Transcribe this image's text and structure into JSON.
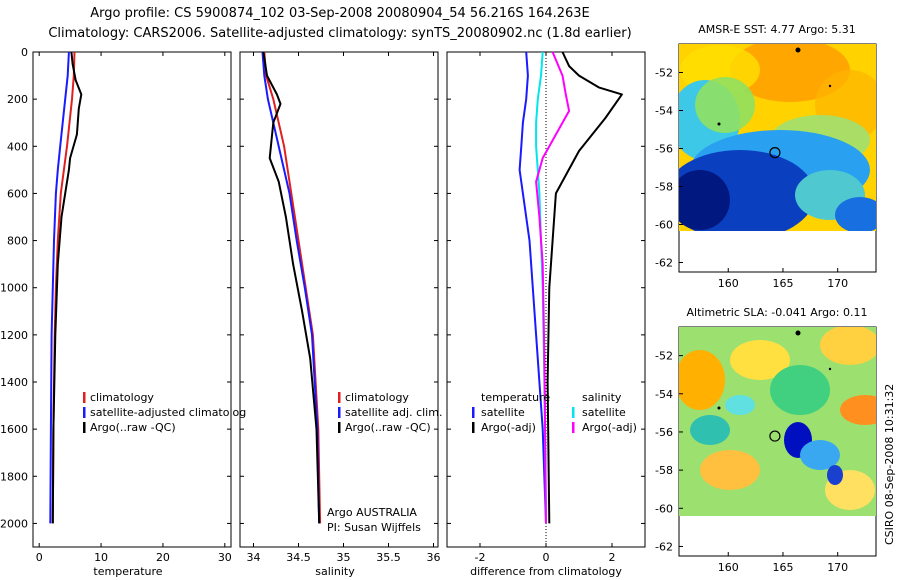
{
  "header": {
    "line1": "Argo profile: CS 5900874_102 03-Sep-2008 20080904_54 56.216S 164.263E",
    "line2": "Climatology: CARS2006. Satellite-adjusted climatology: synTS_20080902.nc (1.8d earlier)"
  },
  "chart_data": [
    {
      "type": "line",
      "xlabel": "temperature",
      "ylabel": "",
      "xlim": [
        -1,
        31
      ],
      "ylim": [
        2100,
        0
      ],
      "xticks": [
        0,
        10,
        20,
        30
      ],
      "yticks": [
        0,
        200,
        400,
        600,
        800,
        1000,
        1200,
        1400,
        1600,
        1800,
        2000
      ],
      "legend": [
        "climatology",
        "satellite-adjusted climatolog",
        "Argo(..raw -QC)"
      ],
      "legend_position": "lower-middle",
      "series": [
        {
          "name": "climatology",
          "color": "#e02020",
          "x": [
            5.7,
            5.6,
            5.3,
            4.9,
            4.5,
            4.0,
            3.5,
            3.0,
            2.7,
            2.5,
            2.3,
            2.2
          ],
          "y": [
            0,
            100,
            200,
            300,
            400,
            500,
            600,
            800,
            1000,
            1200,
            1600,
            2000
          ]
        },
        {
          "name": "satellite-adjusted climatolog",
          "color": "#1a1aff",
          "x": [
            4.8,
            4.6,
            4.2,
            3.8,
            3.4,
            3.0,
            2.7,
            2.4,
            2.2,
            2.0,
            1.9,
            1.8
          ],
          "y": [
            0,
            100,
            200,
            300,
            400,
            500,
            600,
            800,
            1000,
            1200,
            1600,
            2000
          ]
        },
        {
          "name": "Argo(..raw -QC)",
          "color": "#000000",
          "x": [
            5.2,
            5.4,
            5.9,
            6.8,
            6.4,
            6.1,
            5.0,
            4.8,
            4.2,
            3.6,
            3.0,
            2.6,
            2.3,
            2.2
          ],
          "y": [
            0,
            50,
            120,
            180,
            240,
            350,
            450,
            500,
            600,
            700,
            900,
            1200,
            1600,
            2000
          ]
        }
      ]
    },
    {
      "type": "line",
      "xlabel": "salinity",
      "xlim": [
        33.85,
        36.05
      ],
      "ylim": [
        2100,
        0
      ],
      "xticks": [
        34,
        34.5,
        35,
        35.5,
        36
      ],
      "xticklabels": [
        "34",
        "34.5",
        "35",
        "35.5",
        "36"
      ],
      "legend": [
        "climatology",
        "satellite adj. clim.",
        "Argo(..raw -QC)"
      ],
      "legend_position": "lower-middle",
      "annotations": [
        "Argo AUSTRALIA",
        "PI: Susan Wijffels"
      ],
      "series": [
        {
          "name": "climatology",
          "color": "#e02020",
          "x": [
            34.12,
            34.14,
            34.22,
            34.28,
            34.34,
            34.38,
            34.42,
            34.5,
            34.58,
            34.66,
            34.72,
            34.74
          ],
          "y": [
            0,
            100,
            200,
            300,
            400,
            500,
            600,
            800,
            1000,
            1200,
            1600,
            2000
          ]
        },
        {
          "name": "satellite adj. clim.",
          "color": "#1a1aff",
          "x": [
            34.1,
            34.12,
            34.16,
            34.22,
            34.28,
            34.34,
            34.4,
            34.48,
            34.57,
            34.65,
            34.71,
            34.73
          ],
          "y": [
            0,
            100,
            200,
            300,
            400,
            500,
            600,
            800,
            1000,
            1200,
            1600,
            2000
          ]
        },
        {
          "name": "Argo(..raw -QC)",
          "color": "#000000",
          "x": [
            34.11,
            34.15,
            34.26,
            34.3,
            34.22,
            34.18,
            34.28,
            34.36,
            34.44,
            34.54,
            34.63,
            34.7,
            34.73
          ],
          "y": [
            0,
            100,
            180,
            220,
            300,
            450,
            550,
            700,
            900,
            1100,
            1300,
            1600,
            2000
          ]
        }
      ]
    },
    {
      "type": "line",
      "xlabel": "difference from climatology",
      "xlim": [
        -3,
        3
      ],
      "ylim": [
        2100,
        0
      ],
      "xticks": [
        -2,
        0,
        2
      ],
      "legend": [
        "temperature",
        "satellite",
        "Argo(-adj)",
        "salinity",
        "satellite",
        "Argo(-adj)"
      ],
      "legend_position": "lower-middle",
      "series": [
        {
          "name": "temperature satellite",
          "color": "#1a1aff",
          "x": [
            -0.6,
            -0.55,
            -0.6,
            -0.7,
            -0.75,
            -0.8,
            -0.7,
            -0.5,
            -0.4,
            -0.3,
            -0.1,
            0.0
          ],
          "y": [
            0,
            100,
            200,
            300,
            400,
            500,
            600,
            800,
            1000,
            1200,
            1600,
            2000
          ]
        },
        {
          "name": "temperature Argo(-adj)",
          "color": "#000000",
          "x": [
            0.5,
            0.7,
            1.0,
            1.6,
            2.3,
            1.8,
            1.0,
            0.3,
            0.2,
            0.1,
            0.05,
            0.1
          ],
          "y": [
            0,
            60,
            100,
            150,
            180,
            280,
            420,
            600,
            800,
            1000,
            1400,
            2000
          ]
        },
        {
          "name": "salinity satellite",
          "color": "#00e5ee",
          "x": [
            -0.1,
            -0.15,
            -0.25,
            -0.3,
            -0.3,
            -0.25,
            -0.2,
            -0.15,
            -0.1,
            -0.05,
            0.0
          ],
          "y": [
            0,
            100,
            200,
            300,
            400,
            500,
            600,
            800,
            1000,
            1400,
            2000
          ]
        },
        {
          "name": "salinity Argo(-adj)",
          "color": "#ff00ff",
          "x": [
            0.2,
            0.5,
            0.6,
            0.7,
            0.3,
            -0.1,
            -0.3,
            -0.2,
            -0.1,
            -0.05,
            0.0
          ],
          "y": [
            0,
            100,
            180,
            250,
            350,
            450,
            550,
            700,
            900,
            1300,
            2000
          ]
        }
      ]
    },
    {
      "type": "heatmap",
      "title": "AMSR-E SST: 4.77  Argo: 5.31",
      "xlim": [
        155.5,
        173.5
      ],
      "ylim": [
        -62.5,
        -50.5
      ],
      "xticks": [
        160,
        165,
        170
      ],
      "yticks": [
        -52,
        -54,
        -56,
        -58,
        -60,
        -62
      ],
      "marker": {
        "x": 164.263,
        "y": -56.216
      }
    },
    {
      "type": "heatmap",
      "title": "Altimetric SLA: -0.041  Argo: 0.11",
      "xlim": [
        155.5,
        173.5
      ],
      "ylim": [
        -62.5,
        -50.5
      ],
      "xticks": [
        160,
        165,
        170
      ],
      "yticks": [
        -52,
        -54,
        -56,
        -58,
        -60,
        -62
      ],
      "marker": {
        "x": 164.263,
        "y": -56.216
      }
    }
  ],
  "footer": {
    "stamp": "CSIRO 08-Sep-2008 10:31:32"
  }
}
